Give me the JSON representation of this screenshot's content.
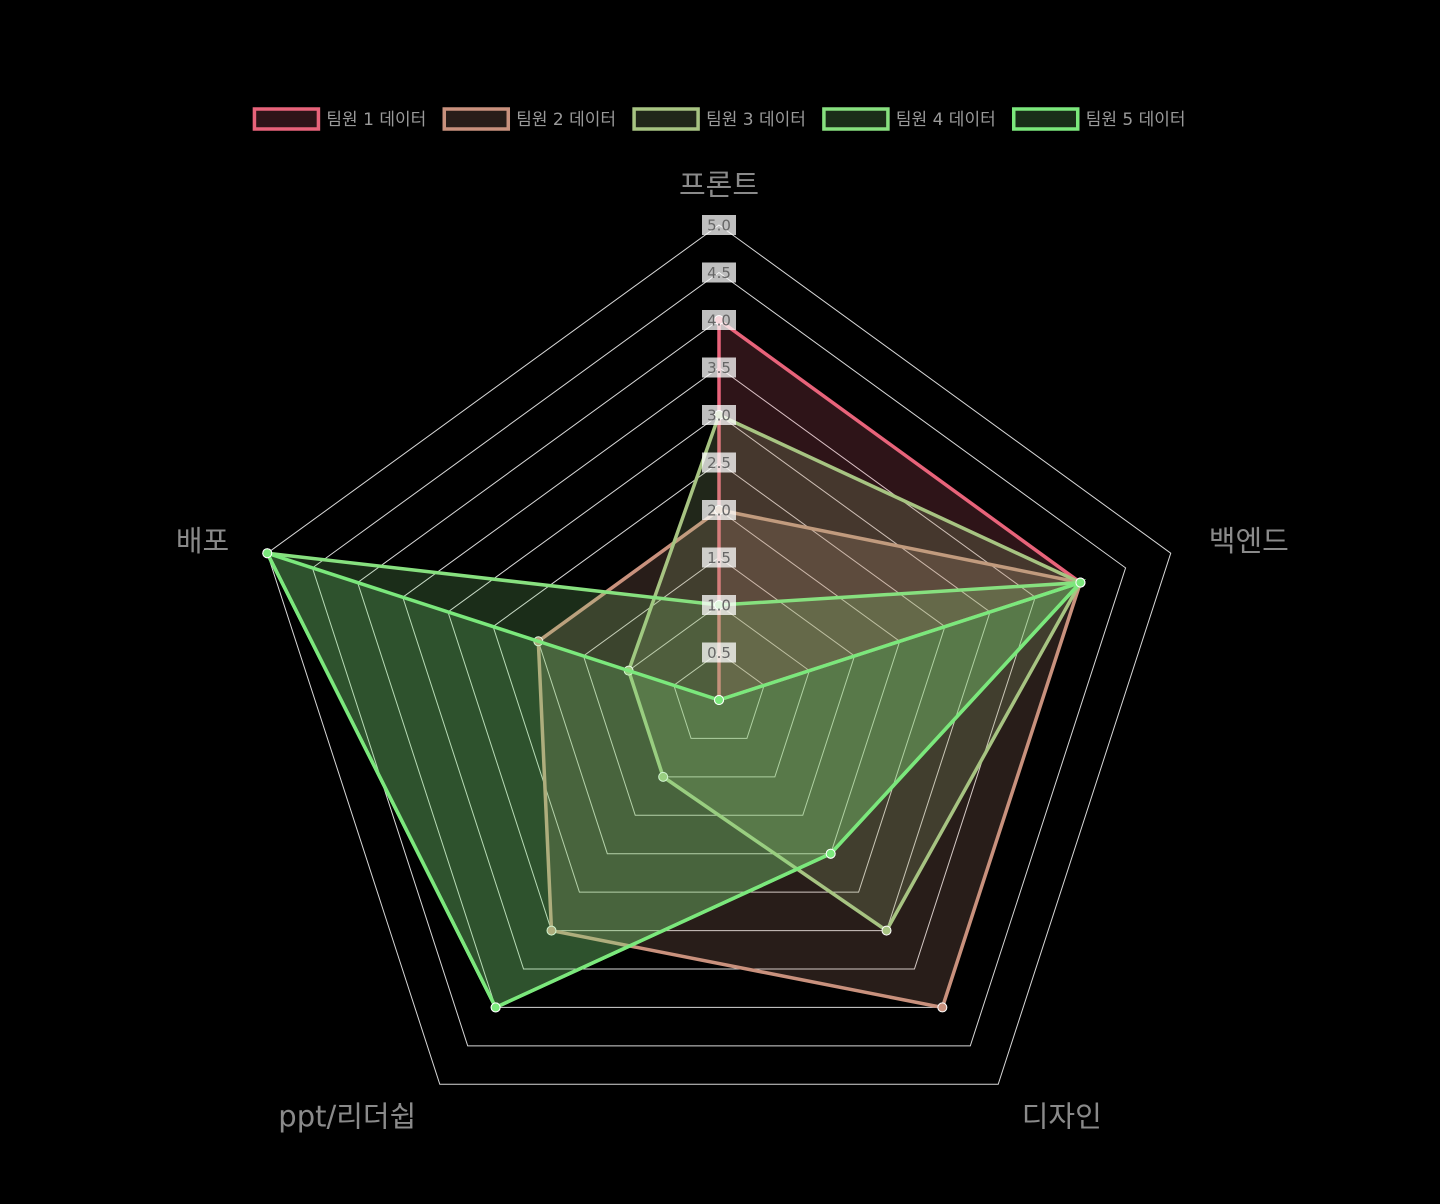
{
  "chart_data": {
    "type": "radar",
    "title": "",
    "axes": [
      "프론트",
      "백엔드",
      "디자인",
      "ppt/리더쉽",
      "배포"
    ],
    "r_min": 0,
    "r_max": 5,
    "ticks": [
      "0.5",
      "1.0",
      "1.5",
      "2.0",
      "2.5",
      "3.0",
      "3.5",
      "4.0",
      "4.5",
      "5.0"
    ],
    "tick_values": [
      0.5,
      1.0,
      1.5,
      2.0,
      2.5,
      3.0,
      3.5,
      4.0,
      4.5,
      5.0
    ],
    "legend_position": "top",
    "grid": true,
    "series": [
      {
        "name": "팀원 1 데이터",
        "values": [
          4,
          4,
          0,
          0,
          0
        ],
        "color": "#e8637a",
        "fill": "rgba(232,99,122,0.2)"
      },
      {
        "name": "팀원 2 데이터",
        "values": [
          2,
          4,
          4,
          3,
          2
        ],
        "color": "#c9917d",
        "fill": "rgba(201,145,125,0.2)"
      },
      {
        "name": "팀원 3 데이터",
        "values": [
          3,
          4,
          3,
          1,
          1
        ],
        "color": "#a7c482",
        "fill": "rgba(167,196,130,0.2)"
      },
      {
        "name": "팀원 4 데이터",
        "values": [
          1,
          4,
          2,
          4,
          5
        ],
        "color": "#87e07f",
        "fill": "rgba(135,224,127,0.2)"
      },
      {
        "name": "팀원 5 데이터",
        "values": [
          0,
          4,
          2,
          4,
          5
        ],
        "color": "#7be87c",
        "fill": "rgba(123,232,124,0.2)"
      }
    ]
  }
}
